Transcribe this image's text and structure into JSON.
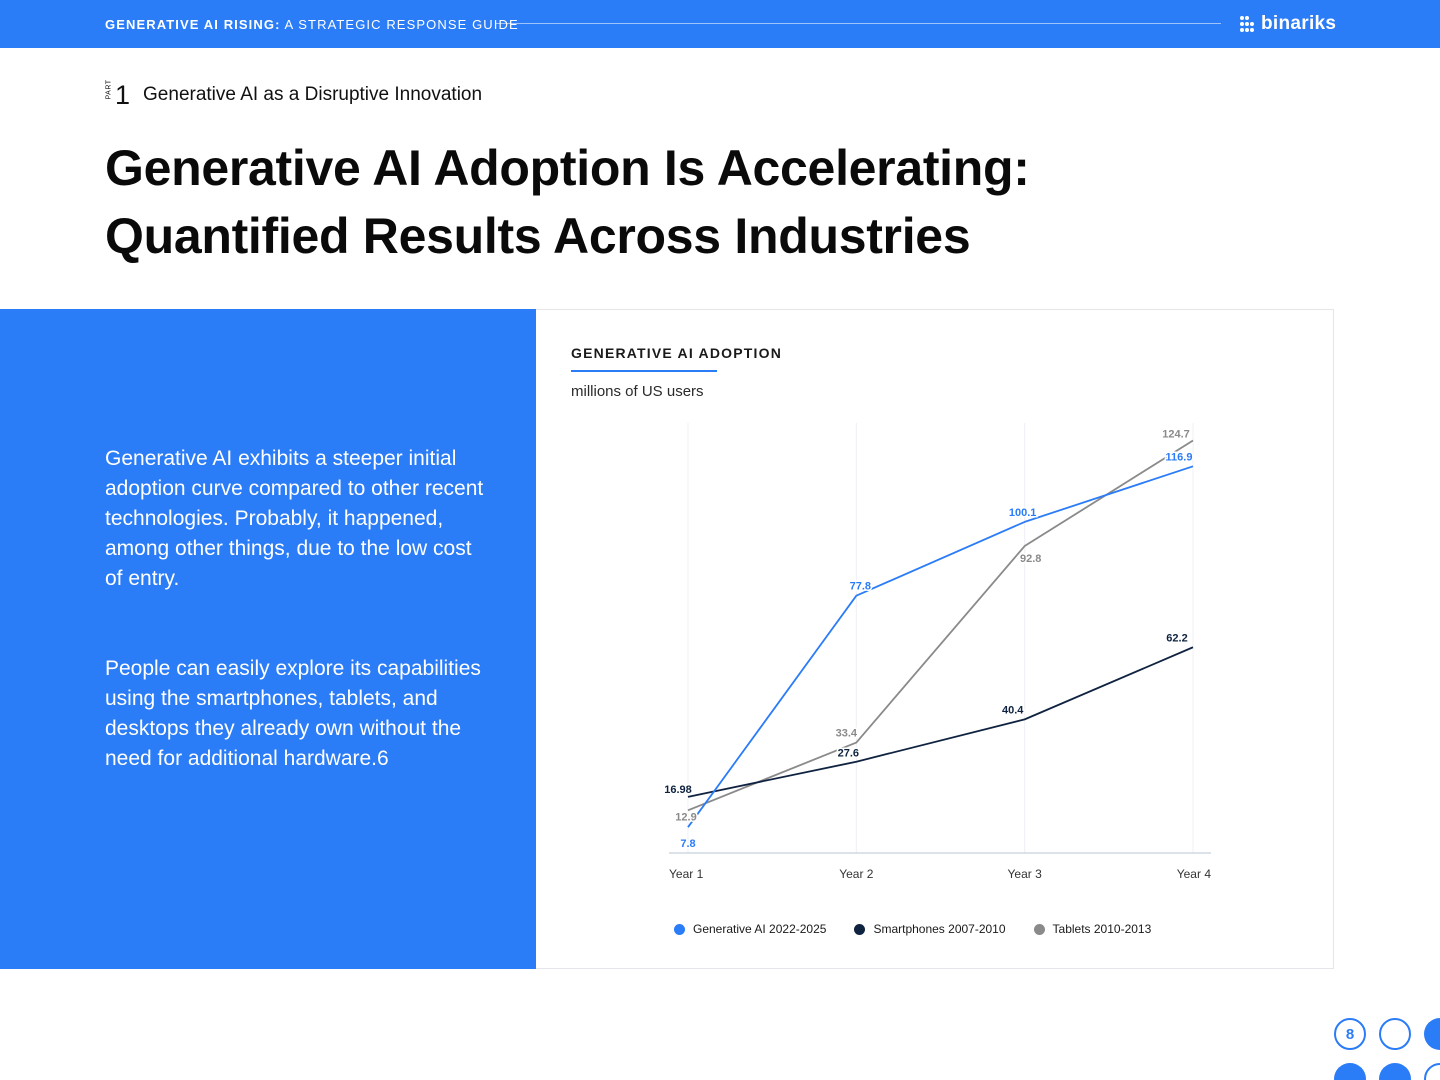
{
  "header": {
    "guide_bold": "GENERATIVE AI RISING:",
    "guide_rest": " A STRATEGIC RESPONSE GUIDE",
    "brand": "binariks"
  },
  "section": {
    "part_word": "PART",
    "part_number": "1",
    "part_title": "Generative AI as a Disruptive Innovation"
  },
  "headline": {
    "line1": "Generative AI Adoption Is Accelerating:",
    "line2": "Quantified Results Across Industries"
  },
  "body": {
    "paragraph1": "Generative AI exhibits a steeper initial adoption curve compared to other recent technologies. Probably, it happened, among other things, due to the low cost of entry.",
    "paragraph2": "People can easily explore its capabilities using the smartphones, tablets, and desktops they already own without the need for additional hardware.6"
  },
  "page_number": "8",
  "colors": {
    "accent": "#2b7cf7",
    "generative_ai": "#2b7cf7",
    "smartphones": "#0f2340",
    "tablets": "#8a8a8a"
  },
  "chart_data": {
    "type": "line",
    "title": "GENERATIVE AI ADOPTION",
    "subtitle": "millions of US users",
    "xlabel": "",
    "ylabel": "",
    "categories": [
      "Year 1",
      "Year 2",
      "Year 3",
      "Year 4"
    ],
    "ylim": [
      0,
      130
    ],
    "grid": "vertical",
    "legend_position": "bottom",
    "series": [
      {
        "name": "Generative AI 2022-2025",
        "values": [
          7.8,
          77.8,
          100.1,
          116.9
        ],
        "labels": [
          "7.8",
          "77.8",
          "100.1",
          "116.9"
        ],
        "color": "#2b7cf7"
      },
      {
        "name": "Smartphones 2007-2010",
        "values": [
          16.98,
          27.6,
          40.4,
          62.2
        ],
        "labels": [
          "16.98",
          "27.6",
          "40.4",
          "62.2"
        ],
        "color": "#0f2340"
      },
      {
        "name": "Tablets 2010-2013",
        "values": [
          12.9,
          33.4,
          92.8,
          124.7
        ],
        "labels": [
          "12.9",
          "33.4",
          "92.8",
          "124.7"
        ],
        "color": "#8a8a8a"
      }
    ]
  }
}
